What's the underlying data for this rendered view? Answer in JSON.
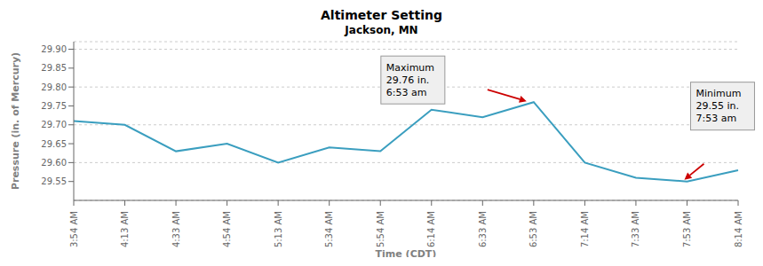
{
  "chart_data": {
    "type": "line",
    "title": "Altimeter Setting",
    "subtitle": "Jackson, MN",
    "xlabel": "Time (CDT)",
    "ylabel": "Pressure (in. of Mercury)",
    "categories": [
      "3:54 AM",
      "4:13 AM",
      "4:33 AM",
      "4:54 AM",
      "5:13 AM",
      "5:34 AM",
      "5:54 AM",
      "6:14 AM",
      "6:33 AM",
      "6:53 AM",
      "7:14 AM",
      "7:33 AM",
      "7:53 AM",
      "8:14 AM"
    ],
    "values": [
      29.71,
      29.7,
      29.63,
      29.65,
      29.6,
      29.64,
      29.63,
      29.74,
      29.72,
      29.76,
      29.6,
      29.56,
      29.55,
      29.58
    ],
    "color": "#3A9EBF",
    "ylim": [
      29.5,
      29.92
    ],
    "yticks": [
      29.55,
      {
        "value": 29.6,
        "label": "29.60"
      },
      29.65,
      {
        "value": 29.7,
        "label": "29.70"
      },
      29.75,
      {
        "value": 29.8,
        "label": "29.80"
      },
      29.85,
      {
        "value": 29.9,
        "label": "29.90"
      }
    ],
    "grid": true,
    "annotations": [
      {
        "text": "Maximum\n29.76 in.\n6:53 am",
        "x": "6:53 AM",
        "y": 29.76,
        "color": "#CC0000"
      },
      {
        "text": "Minimum\n29.55 in.\n7:53 am",
        "x": "7:53 AM",
        "y": 29.55,
        "color": "#CC0000"
      }
    ]
  }
}
